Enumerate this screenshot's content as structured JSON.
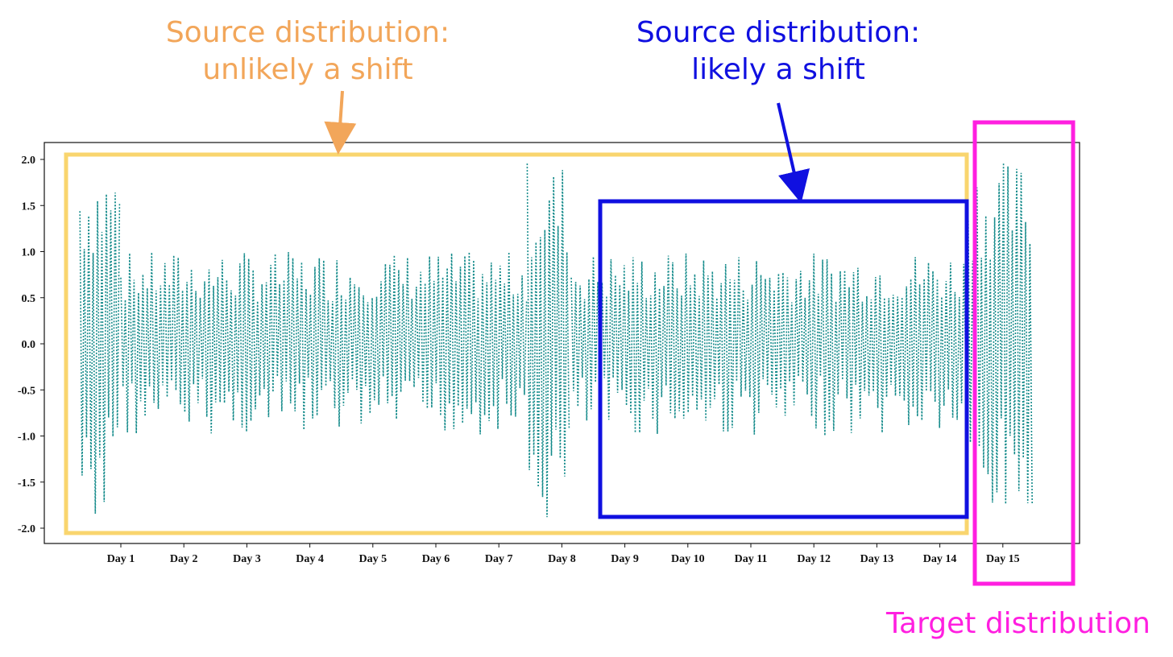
{
  "annotations": {
    "source_unlikely": {
      "line1": "Source distribution:",
      "line2": "unlikely a shift",
      "color": "#f2a65a",
      "box_color": "#f9d56e"
    },
    "source_likely": {
      "line1": "Source distribution:",
      "line2": "likely a shift",
      "color": "#1010e0",
      "box_color": "#1010e0"
    },
    "target": {
      "label": "Target distribution",
      "color": "#ff1fe0",
      "box_color": "#ff1fe0"
    }
  },
  "chart_data": {
    "type": "line",
    "title": "",
    "xlabel": "",
    "ylabel": "",
    "categories": [
      "Day 1",
      "Day 2",
      "Day 3",
      "Day 4",
      "Day 5",
      "Day 6",
      "Day 7",
      "Day 8",
      "Day 9",
      "Day 10",
      "Day 11",
      "Day 12",
      "Day 13",
      "Day 14",
      "Day 15"
    ],
    "yticks": [
      "2.0",
      "1.5",
      "1.0",
      "0.5",
      "0.0",
      "-0.5",
      "-1.0",
      "-1.5",
      "-2.0"
    ],
    "ylim": [
      -2.15,
      2.15
    ],
    "xlim": [
      0,
      15.6
    ],
    "series_color": "#138a8a",
    "line_style": "dotted",
    "segments": [
      {
        "x_start": 0.35,
        "x_end": 1.0,
        "amplitude": 2.0
      },
      {
        "x_start": 1.0,
        "x_end": 7.45,
        "amplitude": 1.0
      },
      {
        "x_start": 7.45,
        "x_end": 8.15,
        "amplitude": 2.0
      },
      {
        "x_start": 8.15,
        "x_end": 14.45,
        "amplitude": 1.0
      },
      {
        "x_start": 14.45,
        "x_end": 15.5,
        "amplitude": 2.0
      }
    ]
  }
}
